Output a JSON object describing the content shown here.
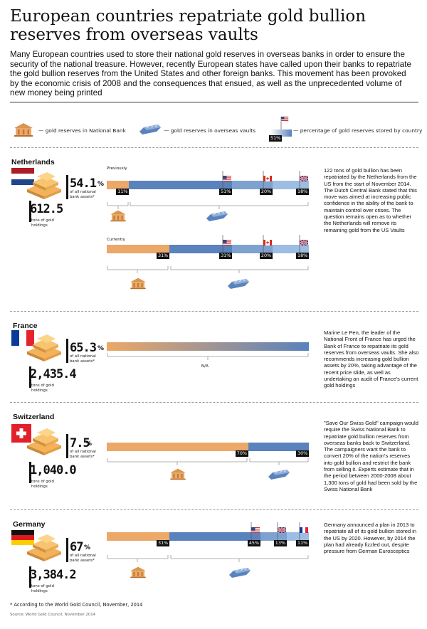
{
  "title": "European countries repatriate gold bullion reserves from overseas vaults",
  "intro": "Many European countries used to store their national gold reserves in overseas banks in order to ensure the security of the national treasure. However, recently European states have called upon their banks to repatriate the gold bullion reserves from the United States and other foreign banks. This movement has been provoked by the economic crisis of 2008 and the consequences that ensued, as well as the unprecedented volume of new money being printed",
  "legend": {
    "national": "— gold reserves in National Bank",
    "overseas": "— gold reserves in overseas vaults",
    "percentage": "— percentage of gold reserves stored by country",
    "sample_pct": "51%"
  },
  "common": {
    "assets_label": "of all national bank assets*",
    "tons_label": "tons of gold holdings",
    "pct_sign": "%"
  },
  "colors": {
    "national_bank": "#eba868",
    "overseas": "#5a82bc",
    "overseas_light": "#9dbde3",
    "gray_line": "#999999"
  },
  "netherlands": {
    "name": "Netherlands",
    "assets_pct": "54.1",
    "tons": "612.5",
    "previously_label": "Previously",
    "currently_label": "Currently",
    "desc": "122 tons of gold bullion has been repatriated by the Netherlands from the US from the start of November 2014. The Dutch Central Bank stated that this move was aimed at increasing public confidence in the ability of the bank to maintain control over crises. The question remains open as to whether the Netherlands will remove its remaining gold from the US Vaults"
  },
  "france": {
    "name": "France",
    "assets_pct": "65.3",
    "tons": "2,435.4",
    "na": "N/A",
    "desc": "Marine Le Pen, the leader of the National Front of France has urged the Bank of France to repatriate its gold reserves from overseas vaults. She also recommends increasing gold bullion assets by 20%, taking advantage of the recent price slide, as well as undertaking an audit of France's current gold holdings"
  },
  "switzerland": {
    "name": "Switzerland",
    "assets_pct": "7.5",
    "tons": "1,040.0",
    "desc": "\"Save Our Swiss Gold\" campaign would require the Swiss National Bank to repatriate gold bullion reserves from overseas banks back to Switzerland. The campaigners want the bank to convert 20% of the nation's reserves into gold bullion and restrict the bank from selling it. Experts estimate that in the period between 2000-2008 about 1,300 tons of gold had been sold by the Swiss National Bank"
  },
  "germany": {
    "name": "Germany",
    "assets_pct": "67",
    "tons": "3,384.2",
    "desc": "Germany announced a plan in 2013 to repatriate all of its gold bullion stored in the US by 2020. However, by 2014 the plan had already fizzled out, despite pressure from German Eurosceptics"
  },
  "footnote": "* According to the World Gold Council, November, 2014",
  "source": "Source: World Gold Council, November 2014",
  "chart_data": {
    "type": "bar",
    "subtype": "stacked-horizontal-percent",
    "bars": [
      {
        "id": "nl_prev",
        "country": "Netherlands",
        "label": "Previously",
        "segments": [
          {
            "location": "National Bank",
            "value": 11,
            "label": "11%"
          },
          {
            "location": "United States",
            "value": 51,
            "label": "51%"
          },
          {
            "location": "Canada",
            "value": 20,
            "label": "20%"
          },
          {
            "location": "United Kingdom",
            "value": 18,
            "label": "18%"
          }
        ]
      },
      {
        "id": "nl_now",
        "country": "Netherlands",
        "label": "Currently",
        "segments": [
          {
            "location": "National Bank",
            "value": 31,
            "label": "31%"
          },
          {
            "location": "United States",
            "value": 31,
            "label": "31%"
          },
          {
            "location": "Canada",
            "value": 20,
            "label": "20%"
          },
          {
            "location": "United Kingdom",
            "value": 18,
            "label": "18%"
          }
        ]
      },
      {
        "id": "fr",
        "country": "France",
        "label": "",
        "segments": [],
        "na": "N/A"
      },
      {
        "id": "ch",
        "country": "Switzerland",
        "label": "",
        "segments": [
          {
            "location": "National Bank",
            "value": 70,
            "label": "70%"
          },
          {
            "location": "Overseas",
            "value": 30,
            "label": "30%"
          }
        ]
      },
      {
        "id": "de",
        "country": "Germany",
        "label": "",
        "segments": [
          {
            "location": "National Bank",
            "value": 31,
            "label": "31%"
          },
          {
            "location": "United States",
            "value": 45,
            "label": "45%"
          },
          {
            "location": "United Kingdom",
            "value": 13,
            "label": "13%"
          },
          {
            "location": "France",
            "value": 11,
            "label": "11%"
          }
        ]
      }
    ],
    "xlim": [
      0,
      100
    ]
  }
}
